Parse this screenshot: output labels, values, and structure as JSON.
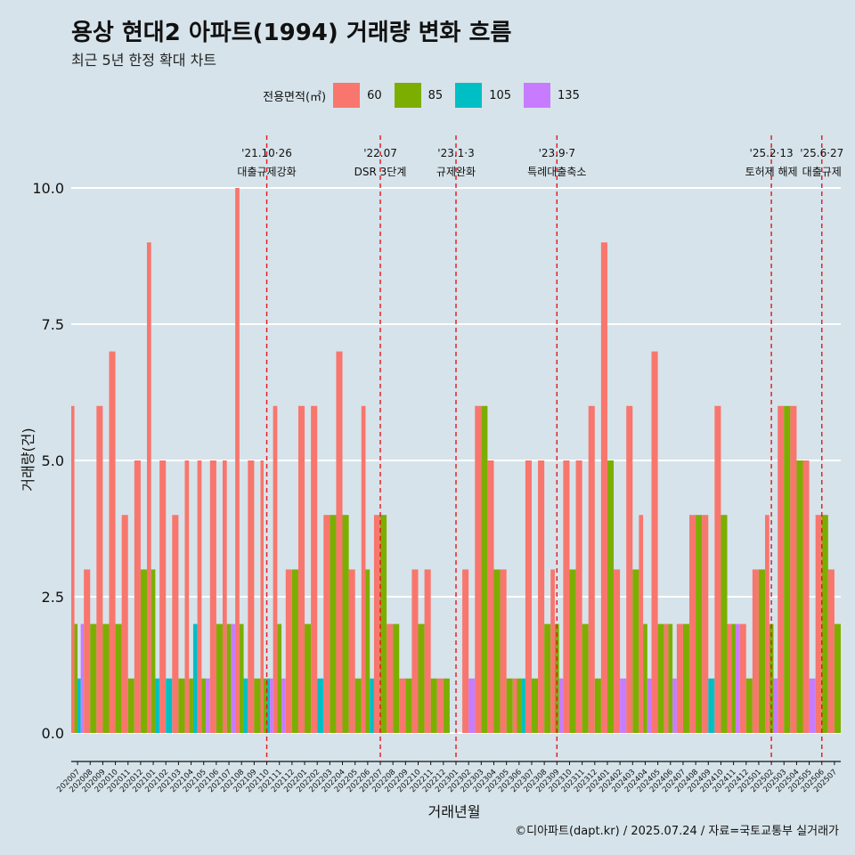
{
  "header": {
    "title": "용상 현대2 아파트(1994) 거래량 변화 흐름",
    "subtitle": "최근 5년 한정 확대 차트"
  },
  "legend": {
    "title": "전용면적(㎡)",
    "items": [
      {
        "label": "60",
        "color": "#F8766D"
      },
      {
        "label": "85",
        "color": "#7CAE00"
      },
      {
        "label": "105",
        "color": "#00BFC4"
      },
      {
        "label": "135",
        "color": "#C77CFF"
      }
    ]
  },
  "axes": {
    "xlabel": "거래년월",
    "ylabel": "거래량(건)"
  },
  "caption": "©디아파트(dapt.kr) / 2025.07.24 / 자료=국토교통부 실거래가",
  "chart_data": {
    "type": "bar",
    "ylim": [
      0,
      10
    ],
    "yticks": [
      "0.0",
      "2.5",
      "5.0",
      "7.5",
      "10.0"
    ],
    "categories": [
      "202007",
      "202008",
      "202009",
      "202010",
      "202011",
      "202012",
      "202101",
      "202102",
      "202103",
      "202104",
      "202105",
      "202106",
      "202107",
      "202108",
      "202109",
      "202110",
      "202111",
      "202112",
      "202201",
      "202202",
      "202203",
      "202204",
      "202205",
      "202206",
      "202207",
      "202208",
      "202209",
      "202210",
      "202211",
      "202212",
      "202301",
      "202302",
      "202303",
      "202304",
      "202305",
      "202306",
      "202307",
      "202308",
      "202309",
      "202310",
      "202311",
      "202312",
      "202401",
      "202402",
      "202403",
      "202404",
      "202405",
      "202406",
      "202407",
      "202408",
      "202409",
      "202410",
      "202411",
      "202412",
      "202501",
      "202502",
      "202503",
      "202504",
      "202505",
      "202506",
      "202507"
    ],
    "series": [
      {
        "name": "60",
        "values": [
          6,
          3,
          6,
          7,
          4,
          5,
          9,
          5,
          4,
          5,
          5,
          5,
          5,
          10,
          5,
          5,
          6,
          3,
          6,
          6,
          4,
          7,
          3,
          6,
          4,
          2,
          1,
          3,
          3,
          1,
          0,
          3,
          6,
          5,
          3,
          1,
          5,
          5,
          3,
          5,
          5,
          6,
          9,
          3,
          6,
          4,
          7,
          2,
          2,
          4,
          4,
          6,
          2,
          2,
          3,
          4,
          6,
          6,
          5,
          4,
          3
        ]
      },
      {
        "name": "85",
        "values": [
          2,
          2,
          2,
          2,
          1,
          3,
          3,
          0,
          1,
          1,
          1,
          2,
          2,
          2,
          1,
          1,
          2,
          3,
          2,
          0,
          4,
          4,
          1,
          3,
          4,
          2,
          1,
          2,
          1,
          1,
          0,
          0,
          6,
          3,
          1,
          1,
          1,
          2,
          2,
          3,
          2,
          1,
          5,
          0,
          3,
          2,
          2,
          2,
          2,
          4,
          0,
          4,
          2,
          1,
          3,
          2,
          6,
          5,
          0,
          4,
          2
        ]
      },
      {
        "name": "105",
        "values": [
          1,
          0,
          0,
          0,
          0,
          0,
          1,
          1,
          0,
          2,
          0,
          0,
          0,
          1,
          0,
          1,
          0,
          0,
          0,
          1,
          0,
          0,
          0,
          1,
          0,
          0,
          0,
          0,
          0,
          0,
          0,
          0,
          0,
          0,
          0,
          1,
          0,
          0,
          0,
          0,
          0,
          0,
          0,
          0,
          0,
          0,
          0,
          0,
          0,
          0,
          1,
          0,
          0,
          0,
          0,
          0,
          0,
          0,
          0,
          0,
          0
        ]
      },
      {
        "name": "135",
        "values": [
          2,
          0,
          0,
          0,
          0,
          0,
          0,
          0,
          0,
          0,
          1,
          0,
          2,
          0,
          0,
          1,
          1,
          0,
          0,
          0,
          0,
          0,
          0,
          0,
          0,
          0,
          0,
          0,
          0,
          0,
          0,
          1,
          0,
          0,
          0,
          0,
          0,
          0,
          1,
          0,
          0,
          0,
          0,
          1,
          0,
          1,
          0,
          1,
          0,
          0,
          0,
          0,
          2,
          0,
          0,
          1,
          0,
          0,
          1,
          0,
          0
        ]
      }
    ],
    "events": [
      {
        "date": "'21.10·26",
        "label": "대출규제강화",
        "at": "202110"
      },
      {
        "date": "'22.07",
        "label": "DSR 3단계",
        "at": "202207"
      },
      {
        "date": "'23.1·3",
        "label": "규제완화",
        "at": "202301"
      },
      {
        "date": "'23.9·7",
        "label": "특례대출축소",
        "at": "202309"
      },
      {
        "date": "'25.2·13",
        "label": "토허제 해제",
        "at": "202502"
      },
      {
        "date": "'25.6·27",
        "label": "대출규제",
        "at": "202506"
      }
    ],
    "colors": {
      "event_line": "#e8151b",
      "grid": "#ffffff",
      "background": "#d6e3ea"
    }
  }
}
